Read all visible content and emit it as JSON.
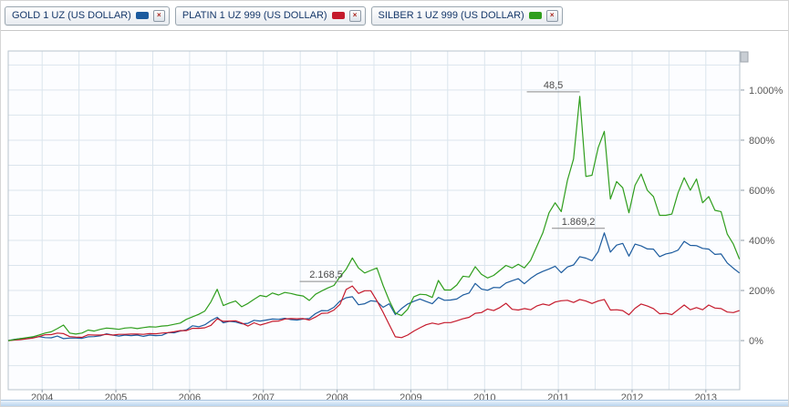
{
  "legend": {
    "close_glyph": "×",
    "items": [
      {
        "id": "gold",
        "label": "GOLD 1 UZ (US DOLLAR)",
        "color": "#1c5b9e"
      },
      {
        "id": "platin",
        "label": "PLATIN 1 UZ 999 (US DOLLAR)",
        "color": "#c51a2c"
      },
      {
        "id": "silber",
        "label": "SILBER 1 UZ 999 (US DOLLAR)",
        "color": "#2f9e1d"
      }
    ]
  },
  "chart_data": {
    "type": "line",
    "unit": "percent change since start",
    "x_start": 2003.54,
    "x_step": 0.083333,
    "xlim": [
      2003.54,
      2013.46
    ],
    "ylim": [
      -196,
      1156
    ],
    "grid": {
      "y_min": -100,
      "y_max": 1100,
      "y_step": 100,
      "x_step": 0.5
    },
    "x_ticks": [
      {
        "value": 2004,
        "label": "2004"
      },
      {
        "value": 2005,
        "label": "2005"
      },
      {
        "value": 2006,
        "label": "2006"
      },
      {
        "value": 2007,
        "label": "2007"
      },
      {
        "value": 2008,
        "label": "2008"
      },
      {
        "value": 2009,
        "label": "2009"
      },
      {
        "value": 2010,
        "label": "2010"
      },
      {
        "value": 2011,
        "label": "2011"
      },
      {
        "value": 2012,
        "label": "2012"
      },
      {
        "value": 2013,
        "label": "2013"
      }
    ],
    "y_axis": {
      "ticks": [
        {
          "value": 0,
          "label": "0%"
        },
        {
          "value": 200,
          "label": "200%"
        },
        {
          "value": 400,
          "label": "400%"
        },
        {
          "value": 600,
          "label": "600%"
        },
        {
          "value": 800,
          "label": "800%"
        },
        {
          "value": 1000,
          "label": "1.000%"
        }
      ]
    },
    "colors": {
      "plot_bg": "#fcfdff",
      "grid": "#dbe5ed",
      "frame": "#b9c4cd",
      "axis_text": "#585858",
      "annotation_line": "#8a8a8a",
      "annotation_text": "#4a4a4a"
    },
    "series": [
      {
        "id": "gold",
        "name": "GOLD 1 UZ (US DOLLAR)",
        "color": "#1c5b9e",
        "values": [
          0,
          5,
          8,
          8,
          11,
          16,
          12,
          11,
          18,
          8,
          10,
          10,
          9,
          15,
          16,
          19,
          27,
          22,
          18,
          22,
          20,
          22,
          17,
          22,
          20,
          21,
          32,
          31,
          38,
          43,
          59,
          55,
          63,
          80,
          93,
          71,
          77,
          74,
          67,
          69,
          81,
          78,
          82,
          86,
          85,
          89,
          84,
          82,
          86,
          88,
          108,
          120,
          119,
          133,
          158,
          171,
          175,
          143,
          147,
          159,
          156,
          133,
          147,
          104,
          128,
          146,
          157,
          166,
          156,
          147,
          172,
          161,
          162,
          166,
          182,
          190,
          228,
          206,
          201,
          212,
          211,
          230,
          239,
          247,
          227,
          248,
          265,
          276,
          286,
          297,
          271,
          294,
          302,
          335,
          329,
          319,
          355,
          430,
          353,
          381,
          388,
          337,
          385,
          378,
          366,
          365,
          335,
          346,
          351,
          361,
          396,
          380,
          379,
          368,
          365,
          344,
          346,
          310,
          289,
          270
        ]
      },
      {
        "id": "platin",
        "name": "PLATIN 1 UZ 999 (US DOLLAR)",
        "color": "#c51a2c",
        "values": [
          0,
          2,
          4,
          7,
          10,
          16,
          23,
          24,
          30,
          28,
          16,
          14,
          13,
          23,
          22,
          22,
          25,
          22,
          25,
          25,
          26,
          26,
          25,
          28,
          27,
          30,
          32,
          35,
          40,
          40,
          49,
          49,
          51,
          61,
          87,
          77,
          78,
          79,
          70,
          58,
          71,
          62,
          69,
          77,
          78,
          86,
          88,
          87,
          88,
          82,
          94,
          109,
          110,
          122,
          145,
          204,
          218,
          188,
          199,
          199,
          159,
          113,
          64,
          15,
          12,
          22,
          38,
          51,
          63,
          70,
          65,
          72,
          72,
          79,
          87,
          93,
          109,
          112,
          126,
          120,
          132,
          149,
          125,
          122,
          128,
          123,
          138,
          146,
          141,
          154,
          159,
          161,
          152,
          164,
          158,
          148,
          158,
          164,
          122,
          123,
          120,
          103,
          129,
          146,
          138,
          128,
          107,
          109,
          104,
          123,
          142,
          123,
          132,
          123,
          142,
          130,
          128,
          114,
          112,
          120
        ]
      },
      {
        "id": "silber",
        "name": "SILBER 1 UZ 999 (US DOLLAR)",
        "color": "#2f9e1d",
        "values": [
          0,
          4,
          8,
          12,
          15,
          22,
          30,
          35,
          48,
          62,
          30,
          26,
          30,
          42,
          38,
          45,
          50,
          48,
          45,
          50,
          52,
          48,
          52,
          55,
          54,
          58,
          60,
          65,
          70,
          85,
          95,
          105,
          118,
          155,
          205,
          140,
          150,
          158,
          135,
          148,
          165,
          180,
          175,
          190,
          182,
          192,
          188,
          182,
          178,
          160,
          185,
          198,
          210,
          220,
          255,
          285,
          330,
          290,
          270,
          280,
          290,
          220,
          160,
          110,
          100,
          125,
          175,
          185,
          183,
          172,
          240,
          202,
          202,
          222,
          257,
          254,
          295,
          265,
          250,
          260,
          280,
          300,
          290,
          305,
          290,
          320,
          375,
          430,
          510,
          550,
          515,
          640,
          725,
          975,
          655,
          660,
          770,
          835,
          565,
          635,
          610,
          510,
          620,
          665,
          600,
          575,
          500,
          500,
          505,
          590,
          650,
          600,
          645,
          550,
          575,
          520,
          515,
          425,
          385,
          325
        ]
      }
    ],
    "annotations": [
      {
        "text": "2.168,5",
        "x": 2008.21,
        "y": 218
      },
      {
        "text": "1.869,2",
        "x": 2011.63,
        "y": 430
      },
      {
        "text": "48,5",
        "x": 2011.29,
        "y": 975
      }
    ]
  }
}
